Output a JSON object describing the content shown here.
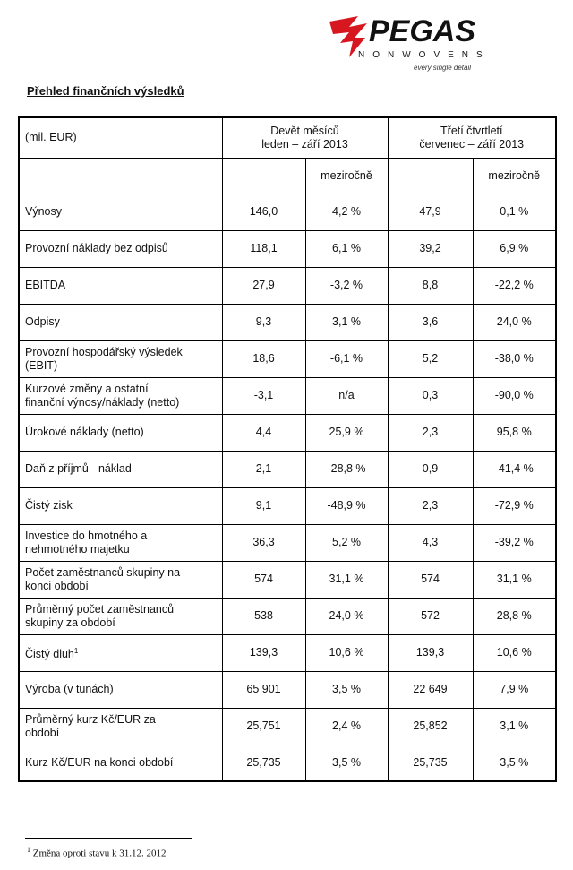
{
  "logo": {
    "name": "PEGAS",
    "subname": "NONWOVENS",
    "tagline": "every single detail"
  },
  "title": "Přehled finančních výsledků",
  "table": {
    "header": {
      "unit": "(mil. EUR)",
      "period1": [
        "Devět měsíců",
        "leden – září 2013"
      ],
      "period2": [
        "Třetí čtvrtletí",
        "červenec – září 2013"
      ],
      "change1": "meziročně",
      "change2": "meziročně"
    },
    "rows": [
      {
        "label": [
          "Výnosy"
        ],
        "values": [
          "146,0",
          "4,2 %",
          "47,9",
          "0,1 %"
        ]
      },
      {
        "label": [
          "Provozní náklady bez odpisů"
        ],
        "values": [
          "118,1",
          "6,1 %",
          "39,2",
          "6,9 %"
        ]
      },
      {
        "label": [
          "EBITDA"
        ],
        "values": [
          "27,9",
          "-3,2 %",
          "8,8",
          "-22,2 %"
        ]
      },
      {
        "label": [
          "Odpisy"
        ],
        "values": [
          "9,3",
          "3,1 %",
          "3,6",
          "24,0 %"
        ]
      },
      {
        "label": [
          "Provozní hospodářský výsledek",
          "(EBIT)"
        ],
        "values": [
          "18,6",
          "-6,1 %",
          "5,2",
          "-38,0 %"
        ]
      },
      {
        "label": [
          "Kurzové změny a ostatní",
          "finanční výnosy/náklady (netto)"
        ],
        "values": [
          "-3,1",
          "n/a",
          "0,3",
          "-90,0 %"
        ]
      },
      {
        "label": [
          "Úrokové náklady (netto)"
        ],
        "values": [
          "4,4",
          "25,9 %",
          "2,3",
          "95,8 %"
        ]
      },
      {
        "label": [
          "Daň z příjmů - náklad"
        ],
        "values": [
          "2,1",
          "-28,8 %",
          "0,9",
          "-41,4 %"
        ]
      },
      {
        "label": [
          "Čistý zisk"
        ],
        "values": [
          "9,1",
          "-48,9 %",
          "2,3",
          "-72,9 %"
        ]
      },
      {
        "label": [
          "Investice do hmotného a",
          "nehmotného majetku"
        ],
        "values": [
          "36,3",
          "5,2 %",
          "4,3",
          "-39,2 %"
        ]
      },
      {
        "label": [
          "Počet zaměstnanců skupiny na",
          "konci období"
        ],
        "values": [
          "574",
          "31,1 %",
          "574",
          "31,1 %"
        ]
      },
      {
        "label": [
          "Průměrný počet zaměstnanců",
          "skupiny za období"
        ],
        "values": [
          "538",
          "24,0 %",
          "572",
          "28,8 %"
        ]
      },
      {
        "label": [
          "Čistý dluh"
        ],
        "note": "1",
        "values": [
          "139,3",
          "10,6 %",
          "139,3",
          "10,6 %"
        ]
      },
      {
        "label": [
          "Výroba (v tunách)"
        ],
        "values": [
          "65 901",
          "3,5 %",
          "22 649",
          "7,9 %"
        ]
      },
      {
        "label": [
          "Průměrný kurz Kč/EUR za",
          "období"
        ],
        "values": [
          "25,751",
          "2,4 %",
          "25,852",
          "3,1 %"
        ]
      },
      {
        "label": [
          "Kurz Kč/EUR na konci období"
        ],
        "values": [
          "25,735",
          "3,5 %",
          "25,735",
          "3,5 %"
        ]
      }
    ]
  },
  "footnote": {
    "mark": "1",
    "text": "Změna oproti stavu k 31.12. 2012"
  }
}
